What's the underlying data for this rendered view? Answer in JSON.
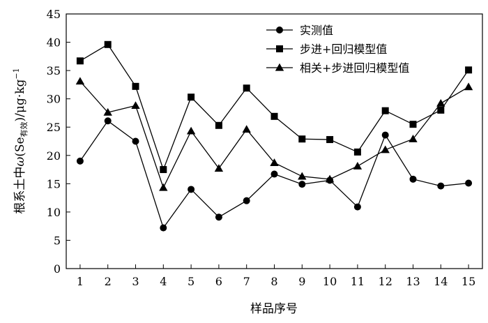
{
  "chart_data": {
    "type": "line",
    "title": "",
    "xlabel": "样品序号",
    "ylabel": "根系土中ω(Se有效)/μg·kg⁻¹",
    "ylabel_parts": {
      "prefix": "根系土中",
      "omega": "ω",
      "open": "(Se",
      "sub": "有效",
      "close": ")/μg·kg",
      "sup": "−1"
    },
    "x": [
      1,
      2,
      3,
      4,
      5,
      6,
      7,
      8,
      9,
      10,
      11,
      12,
      13,
      14,
      15
    ],
    "xlim": [
      0.5,
      15.5
    ],
    "ylim": [
      0,
      45
    ],
    "yticks": [
      0,
      5,
      10,
      15,
      20,
      25,
      30,
      35,
      40,
      45
    ],
    "grid": false,
    "legend_position": "top-right",
    "series": [
      {
        "name": "实测值",
        "marker": "circle",
        "values": [
          19.0,
          26.1,
          22.5,
          7.2,
          14.0,
          9.1,
          12.0,
          16.7,
          14.9,
          15.6,
          10.9,
          23.6,
          15.8,
          14.6,
          15.1
        ]
      },
      {
        "name": "步进+回归模型值",
        "marker": "square",
        "values": [
          36.7,
          39.6,
          32.2,
          17.5,
          30.3,
          25.3,
          31.9,
          26.9,
          22.9,
          22.8,
          20.6,
          27.9,
          25.5,
          28.0,
          35.1
        ]
      },
      {
        "name": "相关+步进回归模型值",
        "marker": "triangle",
        "values": [
          33.1,
          27.6,
          28.8,
          14.3,
          24.3,
          17.7,
          24.6,
          18.7,
          16.3,
          15.8,
          18.1,
          21.0,
          22.9,
          29.2,
          32.1
        ]
      }
    ]
  }
}
